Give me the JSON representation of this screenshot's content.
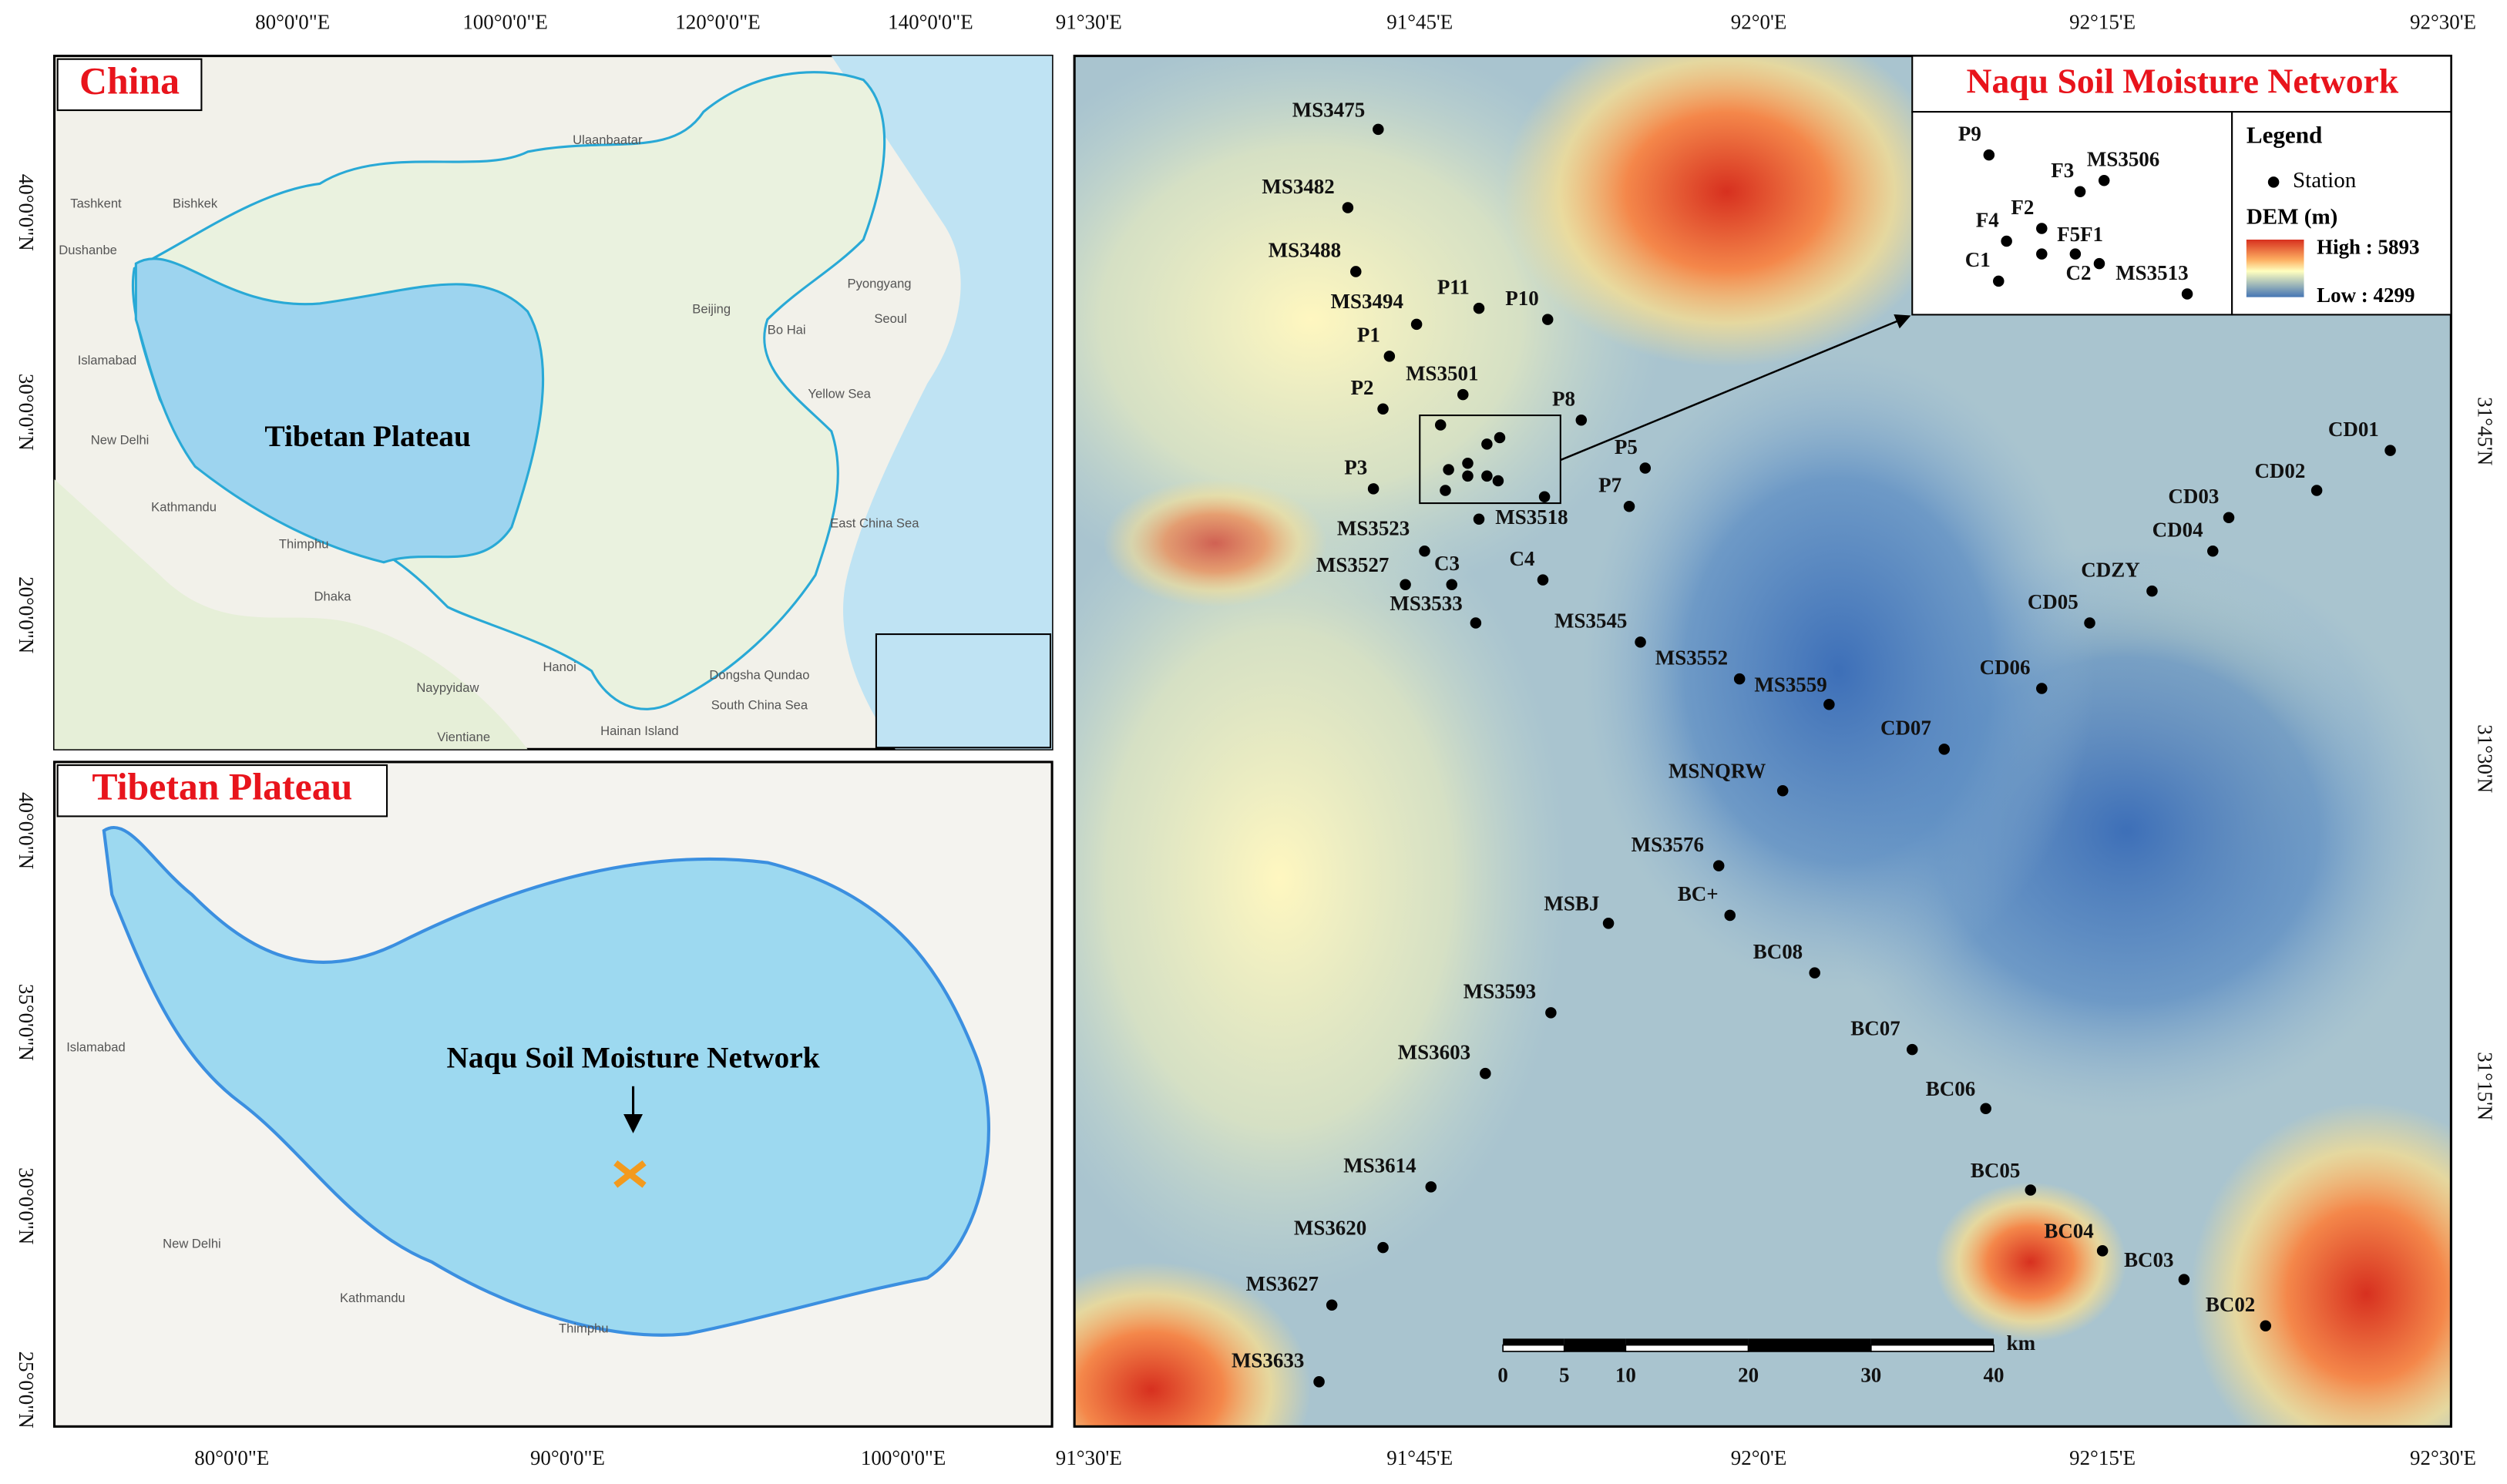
{
  "china_panel": {
    "title": "China",
    "plateau_label": "Tibetan Plateau",
    "top_ticks": [
      "80°0'0\"E",
      "100°0'0\"E",
      "120°0'0\"E",
      "140°0'0\"E"
    ],
    "left_ticks": [
      "40°0'0\"N",
      "30°0'0\"N",
      "20°0'0\"N"
    ],
    "places": [
      "Tashkent",
      "Bishkek",
      "Dushanbe",
      "Islamabad",
      "New Delhi",
      "Kathmandu",
      "Thimphu",
      "Dhaka",
      "Naypyidaw",
      "Vientiane",
      "Hanoi",
      "Ulaanbaatar",
      "Beijing",
      "Bo Hai",
      "Pyongyang",
      "Seoul",
      "Yellow Sea",
      "East China Sea",
      "Dongsha Qundao",
      "South China Sea",
      "Hainan Island"
    ]
  },
  "plateau_panel": {
    "title": "Tibetan Plateau",
    "network_label": "Naqu Soil Moisture Network",
    "left_ticks": [
      "40°0'0\"N",
      "35°0'0\"N",
      "30°0'0\"N",
      "25°0'0\"N"
    ],
    "bottom_ticks": [
      "80°0'0\"E",
      "90°0'0\"E",
      "100°0'0\"E"
    ],
    "places": [
      "Islamabad",
      "New Delhi",
      "Kathmandu",
      "Thimphu"
    ]
  },
  "dem_panel": {
    "title": "Naqu Soil Moisture Network",
    "top_ticks": [
      "91°30'E",
      "91°45'E",
      "92°0'E",
      "92°15'E",
      "92°30'E"
    ],
    "bottom_ticks": [
      "91°30'E",
      "91°45'E",
      "92°0'E",
      "92°15'E",
      "92°30'E"
    ],
    "right_ticks": [
      "31°45'N",
      "31°30'N",
      "31°15'N"
    ],
    "stations": [
      "MS3475",
      "MS3482",
      "MS3488",
      "MS3494",
      "P11",
      "P10",
      "P1",
      "MS3501",
      "P2",
      "P8",
      "P5",
      "P3",
      "P7",
      "MS3518",
      "MS3523",
      "MS3527",
      "C3",
      "C4",
      "MS3533",
      "MS3545",
      "MS3552",
      "MS3559",
      "CD07",
      "MSNQRW",
      "MS3576",
      "BC+",
      "MSBJ",
      "BC08",
      "MS3593",
      "BC07",
      "MS3603",
      "BC06",
      "MS3614",
      "BC05",
      "MS3620",
      "BC04",
      "BC03",
      "MS3627",
      "BC02",
      "MS3633",
      "CD01",
      "CD02",
      "CD03",
      "CD04",
      "CDZY",
      "CD05",
      "CD06"
    ],
    "inset_stations": [
      "P9",
      "F3",
      "MS3506",
      "F4",
      "F2",
      "F5F1",
      "C1",
      "C2",
      "MS3513"
    ],
    "legend": {
      "title": "Legend",
      "station": "Station",
      "dem": "DEM (m)",
      "high": "High : 5893",
      "low": "Low : 4299"
    },
    "scale_bar": {
      "ticks": [
        0,
        5,
        10,
        20,
        30,
        40
      ],
      "unit": "km"
    }
  }
}
